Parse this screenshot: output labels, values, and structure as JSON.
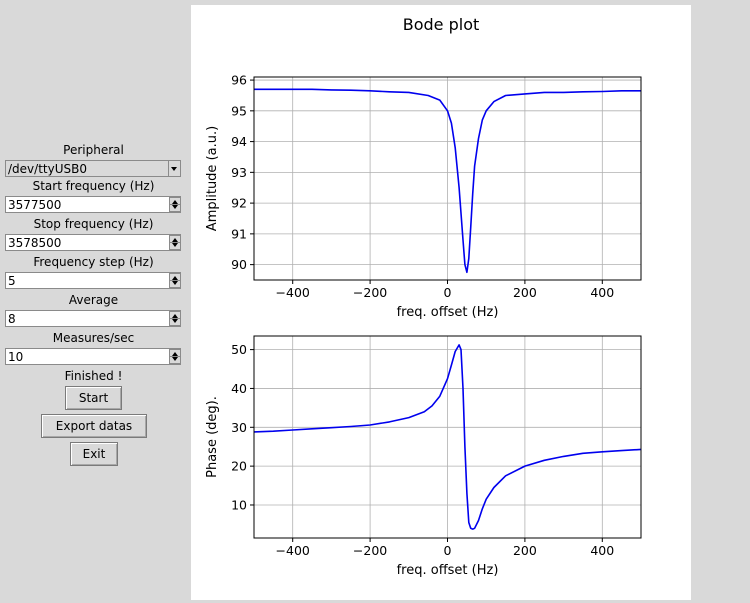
{
  "panel": {
    "peripheral_label": "Peripheral",
    "peripheral_value": "/dev/ttyUSB0",
    "start_label": "Start frequency (Hz)",
    "start_value": "3577500",
    "stop_label": "Stop frequency (Hz)",
    "stop_value": "3578500",
    "step_label": "Frequency step (Hz)",
    "step_value": "5",
    "average_label": "Average",
    "average_value": "8",
    "measures_label": "Measures/sec",
    "measures_value": "10",
    "status": "Finished !",
    "start_button": "Start",
    "export_button": "Export datas",
    "exit_button": "Exit"
  },
  "figure_title": "Bode plot",
  "chart_data": [
    {
      "type": "line",
      "xlabel": "freq. offset (Hz)",
      "ylabel": "Amplitude (a.u.)",
      "xlim": [
        -500,
        500
      ],
      "ylim": [
        89.5,
        96.1
      ],
      "xticks": [
        -400,
        -200,
        0,
        200,
        400
      ],
      "yticks": [
        90,
        91,
        92,
        93,
        94,
        95,
        96
      ],
      "xtick_labels": [
        "−400",
        "−200",
        "0",
        "200",
        "400"
      ],
      "ytick_labels": [
        "90",
        "91",
        "92",
        "93",
        "94",
        "95",
        "96"
      ],
      "grid": true,
      "color": "#0000ee",
      "x": [
        -500,
        -450,
        -400,
        -350,
        -300,
        -250,
        -200,
        -150,
        -100,
        -50,
        -20,
        0,
        10,
        20,
        30,
        40,
        45,
        50,
        55,
        60,
        65,
        70,
        80,
        90,
        100,
        120,
        150,
        200,
        250,
        300,
        350,
        400,
        450,
        500
      ],
      "y": [
        95.7,
        95.7,
        95.7,
        95.7,
        95.68,
        95.67,
        95.65,
        95.62,
        95.6,
        95.5,
        95.35,
        95.0,
        94.6,
        93.8,
        92.5,
        90.8,
        90.0,
        89.75,
        90.2,
        91.2,
        92.3,
        93.2,
        94.1,
        94.7,
        95.0,
        95.3,
        95.5,
        95.55,
        95.6,
        95.6,
        95.62,
        95.63,
        95.65,
        95.65
      ]
    },
    {
      "type": "line",
      "xlabel": "freq. offset (Hz)",
      "ylabel": "Phase (deg).",
      "xlim": [
        -500,
        500
      ],
      "ylim": [
        1.5,
        53.5
      ],
      "xticks": [
        -400,
        -200,
        0,
        200,
        400
      ],
      "yticks": [
        10,
        20,
        30,
        40,
        50
      ],
      "xtick_labels": [
        "−400",
        "−200",
        "0",
        "200",
        "400"
      ],
      "ytick_labels": [
        "10",
        "20",
        "30",
        "40",
        "50"
      ],
      "grid": true,
      "color": "#0000ee",
      "x": [
        -500,
        -450,
        -400,
        -350,
        -300,
        -250,
        -200,
        -150,
        -100,
        -60,
        -40,
        -20,
        0,
        10,
        20,
        30,
        35,
        40,
        45,
        50,
        55,
        60,
        65,
        70,
        80,
        90,
        100,
        120,
        150,
        200,
        250,
        300,
        350,
        400,
        450,
        500
      ],
      "y": [
        28.8,
        29.0,
        29.3,
        29.6,
        29.9,
        30.2,
        30.6,
        31.4,
        32.5,
        34.0,
        35.5,
        38.0,
        42.5,
        46.0,
        49.5,
        51.2,
        50.0,
        40.0,
        25.0,
        13.0,
        5.5,
        4.0,
        3.8,
        4.0,
        6.0,
        9.0,
        11.5,
        14.5,
        17.5,
        20.0,
        21.5,
        22.5,
        23.3,
        23.7,
        24.0,
        24.3
      ]
    }
  ]
}
